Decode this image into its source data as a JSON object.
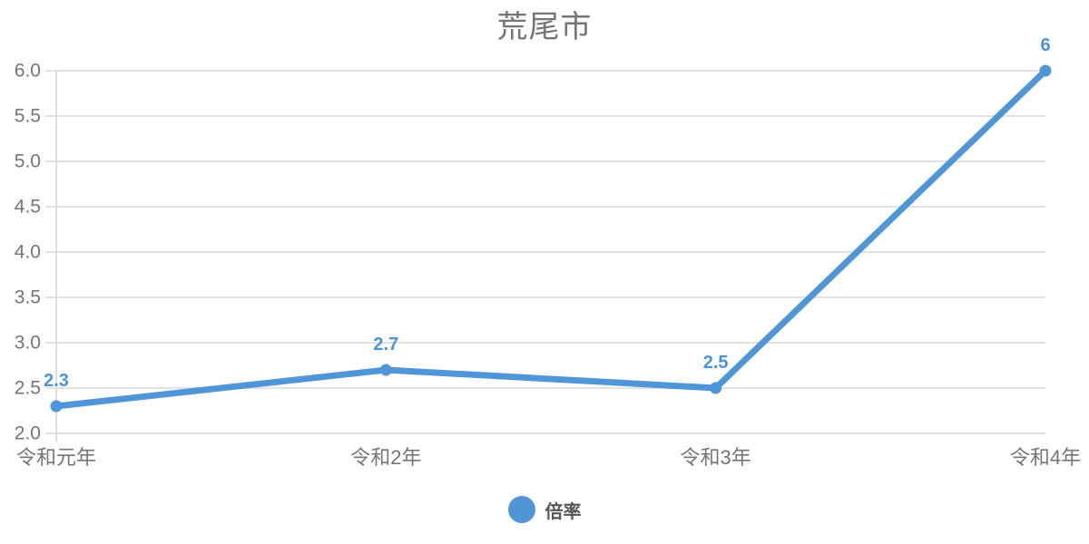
{
  "title": "荒尾市",
  "legend": {
    "label": "倍率"
  },
  "colors": {
    "line": "#4f96d9",
    "point": "#4f96d9",
    "data_label": "#4a93d8",
    "grid": "#e2e2e2",
    "axis_line": "#dedede",
    "axis_label": "#757575",
    "title": "#757575",
    "legend_text": "#55565a",
    "background": "#ffffff"
  },
  "chart_data": {
    "type": "line",
    "title": "荒尾市",
    "categories": [
      "令和元年",
      "令和2年",
      "令和3年",
      "令和4年"
    ],
    "series": [
      {
        "name": "倍率",
        "values": [
          2.3,
          2.7,
          2.5,
          6
        ]
      }
    ],
    "data_labels": [
      "2.3",
      "2.7",
      "2.5",
      "6"
    ],
    "ylim": [
      2.0,
      6.0
    ],
    "ytick_step": 0.5,
    "ytick_format_decimals": 1,
    "grid": "horizontal-only",
    "legend_position": "bottom"
  }
}
